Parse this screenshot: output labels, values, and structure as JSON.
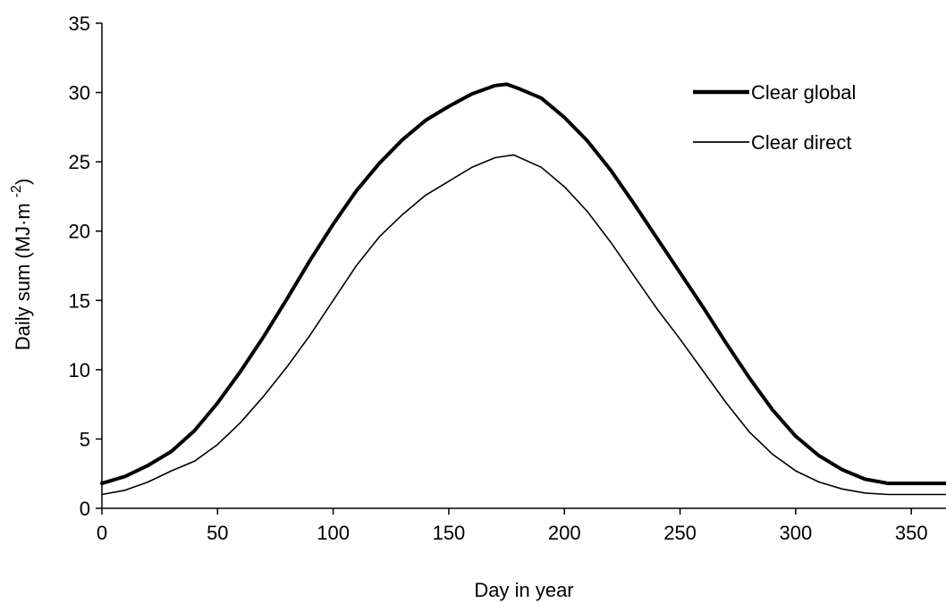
{
  "chart_data": {
    "type": "line",
    "title": "",
    "xlabel": "Day in year",
    "ylabel": "Daily sum (MJ·m",
    "ylabel_sup": "-2",
    "ylabel_close": ")",
    "xlim": [
      0,
      365
    ],
    "ylim": [
      0,
      35
    ],
    "x_ticks": [
      0,
      50,
      100,
      150,
      200,
      250,
      300,
      350
    ],
    "y_ticks": [
      0,
      5,
      10,
      15,
      20,
      25,
      30,
      35
    ],
    "grid": false,
    "legend_position": "top-right",
    "series": [
      {
        "name": "Clear global",
        "color": "#000000",
        "style": "thick",
        "x": [
          0,
          10,
          20,
          30,
          40,
          50,
          60,
          70,
          80,
          90,
          100,
          110,
          120,
          130,
          140,
          150,
          160,
          170,
          175,
          180,
          190,
          200,
          210,
          220,
          230,
          240,
          250,
          260,
          270,
          280,
          290,
          300,
          310,
          320,
          330,
          340,
          350,
          365
        ],
        "y": [
          1.8,
          2.3,
          3.1,
          4.1,
          5.6,
          7.6,
          9.9,
          12.4,
          15.1,
          17.9,
          20.5,
          22.9,
          24.9,
          26.6,
          28.0,
          29.0,
          29.9,
          30.5,
          30.6,
          30.3,
          29.6,
          28.2,
          26.5,
          24.4,
          22.0,
          19.5,
          17.0,
          14.5,
          11.9,
          9.4,
          7.1,
          5.2,
          3.8,
          2.8,
          2.1,
          1.8,
          1.8,
          1.8
        ]
      },
      {
        "name": "Clear direct",
        "color": "#000000",
        "style": "thin",
        "x": [
          0,
          10,
          20,
          30,
          40,
          50,
          60,
          70,
          80,
          90,
          100,
          110,
          120,
          130,
          140,
          150,
          160,
          170,
          178,
          190,
          200,
          210,
          220,
          230,
          240,
          250,
          260,
          270,
          280,
          290,
          300,
          310,
          320,
          330,
          340,
          350,
          365
        ],
        "y": [
          1.0,
          1.3,
          1.9,
          2.7,
          3.4,
          4.6,
          6.2,
          8.1,
          10.2,
          12.5,
          15.0,
          17.5,
          19.6,
          21.2,
          22.6,
          23.6,
          24.6,
          25.3,
          25.5,
          24.6,
          23.2,
          21.4,
          19.2,
          16.8,
          14.4,
          12.2,
          9.9,
          7.6,
          5.5,
          3.9,
          2.7,
          1.9,
          1.4,
          1.1,
          1.0,
          1.0,
          1.0
        ]
      }
    ]
  }
}
